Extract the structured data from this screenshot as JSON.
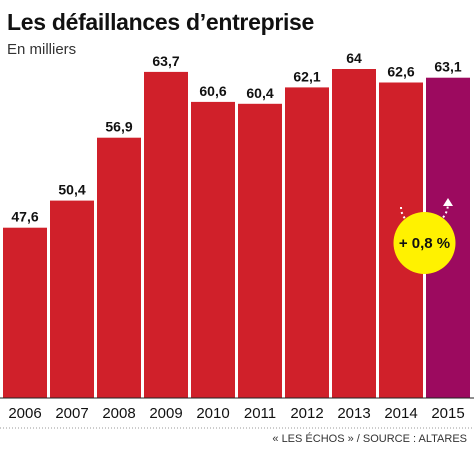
{
  "chart_data": {
    "type": "bar",
    "title": "Les défaillances d’entreprise",
    "subtitle": "En milliers",
    "categories": [
      "2006",
      "2007",
      "2008",
      "2009",
      "2010",
      "2011",
      "2012",
      "2013",
      "2014",
      "2015"
    ],
    "values": [
      47.6,
      50.4,
      56.9,
      63.7,
      60.6,
      60.4,
      62.1,
      64,
      62.6,
      63.1
    ],
    "value_labels": [
      "47,6",
      "50,4",
      "56,9",
      "63,7",
      "60,6",
      "60,4",
      "62,1",
      "64",
      "62,6",
      "63,1"
    ],
    "ylim": [
      30,
      64
    ],
    "grid": false,
    "colors": {
      "bar": "#d0202a",
      "highlight_bar": "#9c0a5f",
      "badge": "#fff200",
      "arrow": "#ffffff"
    },
    "highlight_category": "2015",
    "annotation": {
      "text": "+ 0,8 %",
      "from": "2014",
      "to": "2015"
    },
    "source": "« LES ÉCHOS » / SOURCE : ALTARES"
  }
}
